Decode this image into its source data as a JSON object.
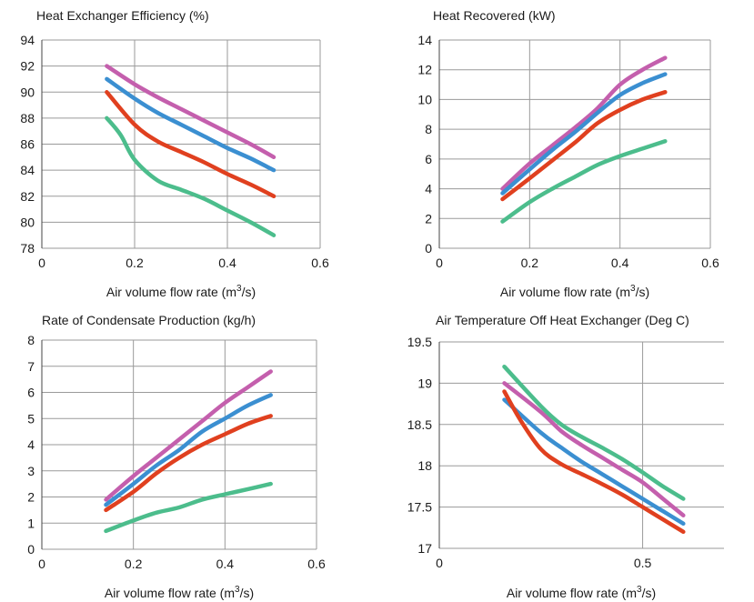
{
  "chart_data": [
    {
      "type": "line",
      "title": "Heat Exchanger Efficiency (%)",
      "xlabel": "Air volume flow rate (m³/s)",
      "xlabel_main": "Air volume flow rate (m",
      "xlabel_sup": "3",
      "xlabel_tail": "/s)",
      "xlim": [
        0,
        0.6
      ],
      "ylim": [
        78,
        94
      ],
      "xticks": [
        0,
        0.2,
        0.4,
        0.6
      ],
      "xtick_labels": [
        "0",
        "0.2",
        "0.4",
        "0.6"
      ],
      "yticks": [
        78,
        80,
        82,
        84,
        86,
        88,
        90,
        92,
        94
      ],
      "ytick_labels": [
        "78",
        "80",
        "82",
        "84",
        "86",
        "88",
        "90",
        "92",
        "94"
      ],
      "grid": true,
      "series": [
        {
          "color": "#c45fad",
          "x": [
            0.14,
            0.2,
            0.25,
            0.3,
            0.35,
            0.4,
            0.45,
            0.5
          ],
          "y": [
            92,
            90.6,
            89.6,
            88.7,
            87.8,
            86.9,
            86,
            85
          ]
        },
        {
          "color": "#3b8fd1",
          "x": [
            0.14,
            0.2,
            0.25,
            0.3,
            0.35,
            0.4,
            0.45,
            0.5
          ],
          "y": [
            91,
            89.5,
            88.4,
            87.5,
            86.6,
            85.7,
            84.9,
            84
          ]
        },
        {
          "color": "#e0401f",
          "x": [
            0.14,
            0.2,
            0.25,
            0.3,
            0.35,
            0.4,
            0.45,
            0.5
          ],
          "y": [
            90,
            87.5,
            86.2,
            85.4,
            84.6,
            83.7,
            82.9,
            82
          ]
        },
        {
          "color": "#4cbd8c",
          "x": [
            0.14,
            0.17,
            0.2,
            0.25,
            0.3,
            0.35,
            0.4,
            0.45,
            0.5
          ],
          "y": [
            88,
            86.7,
            84.8,
            83.2,
            82.5,
            81.8,
            80.9,
            80,
            79
          ]
        }
      ]
    },
    {
      "type": "line",
      "title": "Heat Recovered (kW)",
      "xlabel": "Air volume flow rate (m³/s)",
      "xlabel_main": "Air volume flow rate (m",
      "xlabel_sup": "3",
      "xlabel_tail": "/s)",
      "xlim": [
        0,
        0.6
      ],
      "ylim": [
        0,
        14
      ],
      "xticks": [
        0,
        0.2,
        0.4,
        0.6
      ],
      "xtick_labels": [
        "0",
        "0.2",
        "0.4",
        "0.6"
      ],
      "yticks": [
        0,
        2,
        4,
        6,
        8,
        10,
        12,
        14
      ],
      "ytick_labels": [
        "0",
        "2",
        "4",
        "6",
        "8",
        "10",
        "12",
        "14"
      ],
      "grid": true,
      "series": [
        {
          "color": "#c45fad",
          "x": [
            0.14,
            0.2,
            0.25,
            0.3,
            0.35,
            0.4,
            0.45,
            0.5
          ],
          "y": [
            4,
            5.7,
            6.9,
            8.1,
            9.4,
            11,
            12,
            12.8
          ]
        },
        {
          "color": "#3b8fd1",
          "x": [
            0.14,
            0.2,
            0.25,
            0.3,
            0.35,
            0.4,
            0.45,
            0.5
          ],
          "y": [
            3.7,
            5.3,
            6.6,
            7.8,
            9.1,
            10.3,
            11.1,
            11.7
          ]
        },
        {
          "color": "#e0401f",
          "x": [
            0.14,
            0.2,
            0.25,
            0.3,
            0.35,
            0.4,
            0.45,
            0.5
          ],
          "y": [
            3.3,
            4.7,
            5.9,
            7.1,
            8.4,
            9.3,
            10,
            10.5
          ]
        },
        {
          "color": "#4cbd8c",
          "x": [
            0.14,
            0.2,
            0.25,
            0.3,
            0.35,
            0.4,
            0.45,
            0.5
          ],
          "y": [
            1.8,
            3.1,
            4,
            4.8,
            5.6,
            6.2,
            6.7,
            7.2
          ]
        }
      ]
    },
    {
      "type": "line",
      "title": "Rate of Condensate Production (kg/h)",
      "xlabel": "Air volume flow rate (m³/s)",
      "xlabel_main": "Air volume flow rate (m",
      "xlabel_sup": "3",
      "xlabel_tail": "/s)",
      "xlim": [
        0,
        0.6
      ],
      "ylim": [
        0,
        8
      ],
      "xticks": [
        0,
        0.2,
        0.4,
        0.6
      ],
      "xtick_labels": [
        "0",
        "0.2",
        "0.4",
        "0.6"
      ],
      "yticks": [
        0,
        1,
        2,
        3,
        4,
        5,
        6,
        7,
        8
      ],
      "ytick_labels": [
        "0",
        "1",
        "2",
        "3",
        "4",
        "5",
        "6",
        "7",
        "8"
      ],
      "grid": true,
      "series": [
        {
          "color": "#c45fad",
          "x": [
            0.14,
            0.2,
            0.25,
            0.3,
            0.35,
            0.4,
            0.45,
            0.5
          ],
          "y": [
            1.9,
            2.8,
            3.5,
            4.2,
            4.9,
            5.6,
            6.2,
            6.8
          ]
        },
        {
          "color": "#3b8fd1",
          "x": [
            0.14,
            0.2,
            0.25,
            0.3,
            0.35,
            0.4,
            0.45,
            0.5
          ],
          "y": [
            1.7,
            2.5,
            3.2,
            3.8,
            4.5,
            5,
            5.5,
            5.9
          ]
        },
        {
          "color": "#e0401f",
          "x": [
            0.14,
            0.2,
            0.25,
            0.3,
            0.35,
            0.4,
            0.45,
            0.5
          ],
          "y": [
            1.5,
            2.2,
            2.9,
            3.5,
            4,
            4.4,
            4.8,
            5.1
          ]
        },
        {
          "color": "#4cbd8c",
          "x": [
            0.14,
            0.2,
            0.25,
            0.3,
            0.35,
            0.4,
            0.45,
            0.5
          ],
          "y": [
            0.7,
            1.1,
            1.4,
            1.6,
            1.9,
            2.1,
            2.3,
            2.5
          ]
        }
      ]
    },
    {
      "type": "line",
      "title": "Air Temperature Off Heat Exchanger (Deg C)",
      "xlabel": "Air volume flow rate (m³/s)",
      "xlabel_main": "Air volume flow rate (m",
      "xlabel_sup": "3",
      "xlabel_tail": "/s)",
      "xlim": [
        0,
        0.7
      ],
      "ylim": [
        17,
        19.5
      ],
      "xticks": [
        0,
        0.5
      ],
      "xtick_labels": [
        "0",
        "0.5"
      ],
      "yticks": [
        17,
        17.5,
        18,
        18.5,
        19,
        19.5
      ],
      "ytick_labels": [
        "17",
        "17.5",
        "18",
        "18.5",
        "19",
        "19.5"
      ],
      "grid": true,
      "series": [
        {
          "color": "#c45fad",
          "x": [
            0.16,
            0.25,
            0.3,
            0.35,
            0.4,
            0.45,
            0.5,
            0.55,
            0.6
          ],
          "y": [
            19,
            18.65,
            18.42,
            18.25,
            18.1,
            17.95,
            17.8,
            17.6,
            17.4
          ]
        },
        {
          "color": "#3b8fd1",
          "x": [
            0.16,
            0.25,
            0.3,
            0.35,
            0.4,
            0.45,
            0.5,
            0.55,
            0.6
          ],
          "y": [
            18.8,
            18.4,
            18.22,
            18.05,
            17.9,
            17.75,
            17.6,
            17.45,
            17.3
          ]
        },
        {
          "color": "#e0401f",
          "x": [
            0.16,
            0.2,
            0.25,
            0.3,
            0.35,
            0.4,
            0.45,
            0.5,
            0.55,
            0.6
          ],
          "y": [
            18.9,
            18.55,
            18.2,
            18.02,
            17.9,
            17.78,
            17.65,
            17.5,
            17.35,
            17.2
          ]
        },
        {
          "color": "#4cbd8c",
          "x": [
            0.16,
            0.25,
            0.3,
            0.35,
            0.4,
            0.45,
            0.5,
            0.55,
            0.6
          ],
          "y": [
            19.2,
            18.72,
            18.5,
            18.35,
            18.22,
            18.08,
            17.92,
            17.75,
            17.6
          ]
        }
      ]
    }
  ]
}
